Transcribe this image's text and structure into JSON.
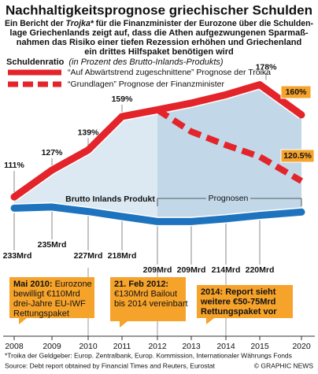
{
  "title": "Nachhaltigkeitsprognose griechischer Schulden",
  "intro": [
    [
      "Ein Bericht der ",
      "Trojka*",
      " für die Finanzminister der Eurozone über die Schulden-"
    ],
    [
      "lage Griechenlands zeigt auf, dass die Athen aufgezwungenen Sparmaß-"
    ],
    [
      "nahmen das Risiko einer tiefen Rezession erhöhen und Griechenland"
    ],
    [
      "ein drittes Hilfspaket benötigen wird"
    ]
  ],
  "chart_data": {
    "type": "line",
    "y_label": "Schuldenratio",
    "y_label_note": "(in Prozent des Brutto-Inlands-Produkts)",
    "categories": [
      "2008",
      "2009",
      "2010",
      "2011",
      "2012",
      "2013",
      "2014",
      "2015",
      "2020"
    ],
    "ylim": [
      50,
      190
    ],
    "y2lim": [
      70,
      490
    ],
    "series": [
      {
        "name": "“Auf Abwärtstrend zugeschnittene” Prognose der Troika",
        "color": "#e3242b",
        "style": "solid",
        "values": [
          111,
          127,
          139,
          159,
          163,
          167,
          172,
          178,
          160
        ],
        "value_labels": [
          "111%",
          "127%",
          "139%",
          "159%",
          null,
          null,
          null,
          "178%",
          "160%"
        ]
      },
      {
        "name": "“Grundlagen” Prognose der Finanzminister",
        "color": "#e3242b",
        "style": "dashed",
        "values": [
          null,
          null,
          null,
          null,
          163,
          150,
          142,
          135,
          120.5
        ],
        "value_labels": [
          null,
          null,
          null,
          null,
          null,
          null,
          null,
          null,
          "120.5%"
        ]
      },
      {
        "name": "Brutto Inlands Produkt",
        "color": "#1d73be",
        "style": "solid",
        "axis": "y2",
        "values": [
          233,
          235,
          227,
          218,
          209,
          209,
          214,
          220,
          226
        ],
        "value_labels": [
          "233Mrd",
          "235Mrd",
          "227Mrd",
          "218Mrd",
          "209Mrd",
          "209Mrd",
          "214Mrd",
          "220Mrd",
          null
        ]
      }
    ],
    "forecast_label": "Prognosen",
    "annotations": [
      {
        "date": "Mai 2010:",
        "lines": [
          " Eurozone",
          "bewilligt €110Mrd",
          "drei-Jahre EU-IWF",
          "Rettungspaket"
        ]
      },
      {
        "date": "21. Feb 2012:",
        "lines": [
          "€130Mrd Bailout",
          "bis 2014 vereinbart"
        ]
      },
      {
        "date": "2014:",
        "lines": [
          " Report sieht",
          "weitere €50-75Mrd",
          "Rettungspaket vor"
        ]
      }
    ]
  },
  "footer": {
    "note": "*Troika der Geldgeber: Europ. Zentralbank, Europ. Kommission, Internationaler Währungs Fonds",
    "source": "Source: Debt report obtained by Financial Times and Reuters, Eurostat",
    "credit": "© GRAPHIC NEWS"
  }
}
